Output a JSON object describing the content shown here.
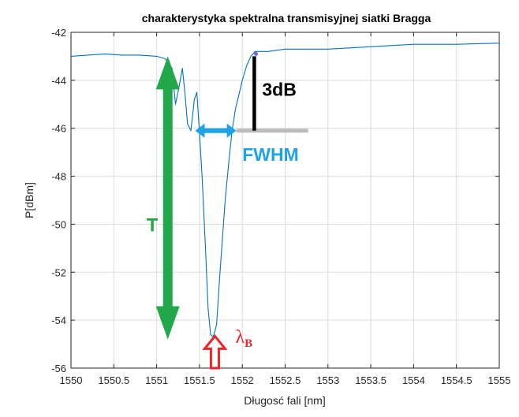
{
  "chart_data": {
    "type": "line",
    "title": "charakterystyka spektralna transmisyjnej siatki Bragga",
    "xlabel": "Długosć fali [nm]",
    "ylabel": "P[dBm]",
    "xlim": [
      1550,
      1555
    ],
    "ylim": [
      -56,
      -42
    ],
    "xticks": [
      "1550",
      "1550.5",
      "1551",
      "1551.5",
      "1552",
      "1552.5",
      "1553",
      "1553.5",
      "1554",
      "1554.5",
      "1555"
    ],
    "yticks": [
      "-42",
      "-44",
      "-46",
      "-48",
      "-50",
      "-52",
      "-54",
      "-56"
    ],
    "grid": true,
    "series": [
      {
        "color": "#0072bd",
        "x": [
          1550.0,
          1550.2,
          1550.4,
          1550.6,
          1550.8,
          1551.0,
          1551.1,
          1551.18,
          1551.22,
          1551.26,
          1551.3,
          1551.33,
          1551.36,
          1551.4,
          1551.44,
          1551.47,
          1551.5,
          1551.53,
          1551.57,
          1551.6,
          1551.63,
          1551.66,
          1551.7,
          1551.73,
          1551.77,
          1551.8,
          1551.84,
          1551.88,
          1551.92,
          1551.96,
          1552.0,
          1552.05,
          1552.1,
          1552.15,
          1552.3,
          1552.5,
          1553.0,
          1553.5,
          1554.0,
          1554.5,
          1555.0
        ],
        "y": [
          -43.0,
          -42.95,
          -42.9,
          -42.95,
          -42.95,
          -43.0,
          -43.1,
          -43.5,
          -45.0,
          -44.3,
          -43.5,
          -44.5,
          -45.8,
          -46.1,
          -44.8,
          -44.5,
          -46.2,
          -48.0,
          -51.0,
          -53.5,
          -54.6,
          -54.7,
          -54.2,
          -52.5,
          -50.5,
          -49.0,
          -47.5,
          -46.1,
          -45.2,
          -44.6,
          -44.0,
          -43.4,
          -43.0,
          -42.8,
          -42.8,
          -42.7,
          -42.7,
          -42.6,
          -42.5,
          -42.5,
          -42.45
        ]
      }
    ],
    "annotations": {
      "T": {
        "label": "T",
        "color": "#22a84a",
        "x": 1551.13,
        "y_top": -43.0,
        "y_bottom": -54.8
      },
      "fwhm": {
        "label": "FWHM",
        "color": "#1ea4e6",
        "y": -46.1,
        "x_left": 1551.45,
        "x_right": 1551.93
      },
      "threshold": {
        "color": "#bbbbbb",
        "y": -46.1,
        "x_left": 1551.93,
        "x_right": 1552.77
      },
      "three_db": {
        "label": "3dB",
        "color": "#000000",
        "x": 1552.14,
        "y_top": -43.0,
        "y_bottom": -46.1
      },
      "peak_point": {
        "color": "#6a6adc",
        "x": 1552.16,
        "y": -42.9
      },
      "lambda_b": {
        "label_main": "λ",
        "label_sub": "B",
        "color": "#e8262c",
        "x": 1551.68,
        "y_tip": -54.6
      }
    }
  }
}
